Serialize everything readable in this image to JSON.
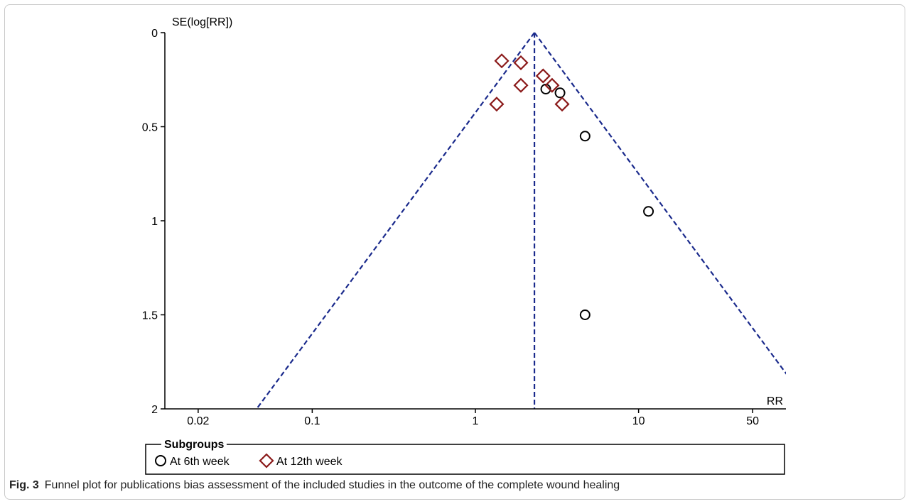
{
  "chart_data": {
    "type": "scatter",
    "title": "",
    "xlabel": "RR",
    "ylabel": "SE(log[RR])",
    "x_scale": "log",
    "xlim": [
      0.0125,
      80
    ],
    "ylim": [
      0,
      2
    ],
    "y_inverted": true,
    "x_ticks": [
      0.02,
      0.1,
      1,
      10,
      50
    ],
    "x_tick_labels": [
      "0.02",
      "0.1",
      "1",
      "10",
      "50"
    ],
    "y_ticks": [
      0,
      0.5,
      1,
      1.5,
      2
    ],
    "y_tick_labels": [
      "0",
      "0.5",
      "1",
      "1.5",
      "2"
    ],
    "pooled_rr": 2.3,
    "funnel": "95% pseudo confidence limits (dashed)",
    "grid": false,
    "legend": {
      "title": "Subgroups",
      "position": "bottom",
      "entries": [
        {
          "name": "At 6th week",
          "marker": "circle",
          "color": "#000000"
        },
        {
          "name": "At 12th week",
          "marker": "diamond",
          "color": "#8b1a1a"
        }
      ]
    },
    "series": [
      {
        "name": "At 6th week",
        "marker": "circle",
        "color": "#000000",
        "points": [
          {
            "x": 2.7,
            "y": 0.3
          },
          {
            "x": 3.3,
            "y": 0.32
          },
          {
            "x": 4.7,
            "y": 0.55
          },
          {
            "x": 11.5,
            "y": 0.95
          },
          {
            "x": 4.7,
            "y": 1.5
          }
        ]
      },
      {
        "name": "At 12th week",
        "marker": "diamond",
        "color": "#8b1a1a",
        "points": [
          {
            "x": 1.45,
            "y": 0.15
          },
          {
            "x": 1.9,
            "y": 0.16
          },
          {
            "x": 2.6,
            "y": 0.23
          },
          {
            "x": 2.95,
            "y": 0.28
          },
          {
            "x": 1.9,
            "y": 0.28
          },
          {
            "x": 1.35,
            "y": 0.38
          },
          {
            "x": 3.4,
            "y": 0.38
          }
        ]
      }
    ],
    "line_color": "#1a2a8c"
  },
  "caption": {
    "label": "Fig. 3",
    "text": "Funnel plot for publications bias assessment of the included studies in the outcome of the complete wound healing"
  }
}
